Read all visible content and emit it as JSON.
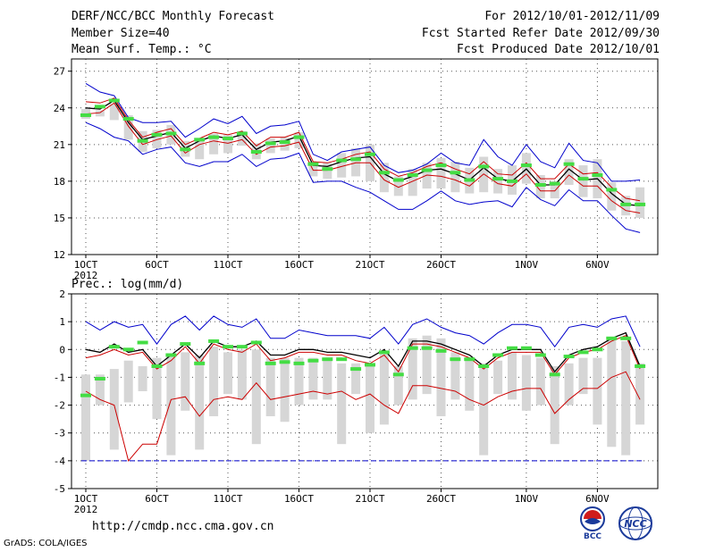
{
  "header": {
    "title": "DERF/NCC/BCC Monthly Forecast",
    "member_size": "Member Size=40",
    "variable_temp": "Mean Surf. Temp.: °C",
    "period": "For 2012/10/01-2012/11/09",
    "fcst_started": "Fcst Started Refer Date 2012/09/30",
    "fcst_produced": "Fcst Produced Date 2012/10/01"
  },
  "footer": {
    "url": "http://cmdp.ncc.cma.gov.cn",
    "grads": "GrADS: COLA/IGES",
    "logo_bcc": "BCC",
    "logo_ncc": "NCC"
  },
  "colors": {
    "ensemble_min_max": "#0000cc",
    "ensemble_spread": "#cc0000",
    "ensemble_mean": "#000000",
    "observed_or_climate": "#44dd44",
    "box": "#d6d6d6"
  },
  "chart_data": [
    {
      "type": "line",
      "title": "Mean Surf. Temp.: °C",
      "x_tick_labels": [
        "1OCT",
        "6OCT",
        "11OCT",
        "16OCT",
        "21OCT",
        "26OCT",
        "1NOV",
        "6NOV"
      ],
      "x_tick_days": [
        1,
        6,
        11,
        16,
        21,
        26,
        32,
        37
      ],
      "x_sub_label": "2012",
      "days": [
        1,
        2,
        3,
        4,
        5,
        6,
        7,
        8,
        9,
        10,
        11,
        12,
        13,
        14,
        15,
        16,
        17,
        18,
        19,
        20,
        21,
        22,
        23,
        24,
        25,
        26,
        27,
        28,
        29,
        30,
        31,
        32,
        33,
        34,
        35,
        36,
        37,
        38,
        39,
        40
      ],
      "ylim": [
        12,
        28
      ],
      "y_ticks": [
        12,
        15,
        18,
        21,
        24,
        27
      ],
      "series": [
        {
          "name": "max",
          "values": [
            26.0,
            25.3,
            25.0,
            23.2,
            22.8,
            22.8,
            22.9,
            21.6,
            22.3,
            23.1,
            22.7,
            23.3,
            21.9,
            22.5,
            22.6,
            22.9,
            20.2,
            19.7,
            20.4,
            20.6,
            20.8,
            19.3,
            18.7,
            18.9,
            19.4,
            20.3,
            19.5,
            19.3,
            21.4,
            20.0,
            19.3,
            21.0,
            19.6,
            19.1,
            21.1,
            19.7,
            19.5,
            18.0,
            18.0,
            18.1
          ]
        },
        {
          "name": "upper",
          "values": [
            24.5,
            24.4,
            24.8,
            23.0,
            21.6,
            22.0,
            22.3,
            21.0,
            21.5,
            22.0,
            21.8,
            22.1,
            20.9,
            21.6,
            21.6,
            22.0,
            19.6,
            19.5,
            19.8,
            20.2,
            20.4,
            19.0,
            18.4,
            18.7,
            19.2,
            19.5,
            19.0,
            18.6,
            19.6,
            18.6,
            18.5,
            19.5,
            18.2,
            18.2,
            19.4,
            18.6,
            18.7,
            17.5,
            16.6,
            16.4
          ]
        },
        {
          "name": "mean",
          "values": [
            24.0,
            23.9,
            24.6,
            22.8,
            21.4,
            21.7,
            22.0,
            20.7,
            21.3,
            21.7,
            21.5,
            21.8,
            20.6,
            21.2,
            21.3,
            21.7,
            19.3,
            19.2,
            19.6,
            19.9,
            20.0,
            18.6,
            18.0,
            18.4,
            18.9,
            19.0,
            18.6,
            18.1,
            19.1,
            18.2,
            18.0,
            19.0,
            17.7,
            17.7,
            19.0,
            18.1,
            18.2,
            17.0,
            16.1,
            16.0
          ]
        },
        {
          "name": "lower",
          "values": [
            23.5,
            23.6,
            24.4,
            22.5,
            21.0,
            21.4,
            21.7,
            20.3,
            21.0,
            21.3,
            21.1,
            21.4,
            20.2,
            20.8,
            20.9,
            21.2,
            18.9,
            18.9,
            19.2,
            19.5,
            19.5,
            18.1,
            17.5,
            18.0,
            18.5,
            18.4,
            18.1,
            17.6,
            18.6,
            17.8,
            17.6,
            18.6,
            17.2,
            17.2,
            18.5,
            17.6,
            17.6,
            16.4,
            15.6,
            15.4
          ]
        },
        {
          "name": "min",
          "values": [
            22.8,
            22.3,
            21.6,
            21.3,
            20.2,
            20.6,
            20.8,
            19.5,
            19.2,
            19.6,
            19.6,
            20.2,
            19.2,
            19.8,
            19.9,
            20.3,
            17.9,
            18.0,
            18.0,
            17.5,
            17.1,
            16.4,
            15.7,
            15.7,
            16.4,
            17.2,
            16.4,
            16.1,
            16.3,
            16.4,
            15.9,
            17.5,
            16.5,
            16.0,
            17.3,
            16.4,
            16.4,
            15.2,
            14.1,
            13.8
          ]
        },
        {
          "name": "box_high",
          "values": [
            23.9,
            23.8,
            24.3,
            23.4,
            22.1,
            22.2,
            22.6,
            21.3,
            21.5,
            21.9,
            21.8,
            22.1,
            21.1,
            21.5,
            21.6,
            22.0,
            19.6,
            19.5,
            20.3,
            20.7,
            21.0,
            19.5,
            18.4,
            19.0,
            19.5,
            19.9,
            19.6,
            19.1,
            20.0,
            19.0,
            19.3,
            20.3,
            18.5,
            18.0,
            19.8,
            19.3,
            19.8,
            17.9,
            16.8,
            17.5
          ]
        },
        {
          "name": "box_low",
          "values": [
            23.1,
            23.3,
            23.0,
            21.4,
            20.4,
            20.7,
            21.0,
            20.0,
            19.8,
            20.2,
            20.3,
            20.9,
            19.8,
            20.3,
            20.5,
            20.7,
            18.4,
            18.2,
            18.3,
            18.4,
            18.0,
            17.1,
            16.8,
            16.8,
            17.4,
            17.4,
            17.1,
            17.0,
            17.1,
            17.0,
            16.9,
            17.8,
            16.6,
            16.6,
            17.7,
            16.7,
            16.6,
            15.6,
            15.2,
            15.0
          ]
        },
        {
          "name": "observed",
          "values": [
            23.4,
            24.1,
            24.6,
            23.1,
            21.3,
            21.8,
            21.9,
            20.6,
            21.4,
            21.6,
            21.5,
            21.9,
            20.4,
            21.1,
            21.2,
            21.6,
            19.4,
            19.0,
            19.7,
            19.8,
            20.2,
            18.7,
            18.1,
            18.5,
            18.9,
            19.3,
            18.7,
            18.1,
            19.2,
            18.2,
            18.0,
            19.3,
            17.7,
            17.8,
            19.4,
            18.2,
            18.5,
            17.3,
            16.1,
            16.1
          ]
        }
      ]
    },
    {
      "type": "line",
      "title": "Prec.: log(mm/d)",
      "x_tick_labels": [
        "1OCT",
        "6OCT",
        "11OCT",
        "16OCT",
        "21OCT",
        "26OCT",
        "1NOV",
        "6NOV"
      ],
      "x_tick_days": [
        1,
        6,
        11,
        16,
        21,
        26,
        32,
        37
      ],
      "x_sub_label": "2012",
      "days": [
        1,
        2,
        3,
        4,
        5,
        6,
        7,
        8,
        9,
        10,
        11,
        12,
        13,
        14,
        15,
        16,
        17,
        18,
        19,
        20,
        21,
        22,
        23,
        24,
        25,
        26,
        27,
        28,
        29,
        30,
        31,
        32,
        33,
        34,
        35,
        36,
        37,
        38,
        39,
        40
      ],
      "ylim": [
        -5,
        2
      ],
      "y_ticks": [
        -5,
        -4,
        -3,
        -2,
        -1,
        0,
        1,
        2
      ],
      "series": [
        {
          "name": "max",
          "values": [
            1.0,
            0.7,
            1.0,
            0.8,
            0.9,
            0.2,
            0.9,
            1.2,
            0.7,
            1.2,
            0.9,
            0.8,
            1.1,
            0.4,
            0.4,
            0.7,
            0.6,
            0.5,
            0.5,
            0.5,
            0.4,
            0.8,
            0.2,
            0.9,
            1.1,
            0.8,
            0.6,
            0.5,
            0.2,
            0.6,
            0.9,
            0.9,
            0.8,
            0.1,
            0.8,
            0.9,
            0.8,
            1.1,
            1.2,
            0.1
          ]
        },
        {
          "name": "mean",
          "values": [
            0.0,
            -0.1,
            0.2,
            -0.1,
            0.0,
            -0.6,
            -0.2,
            0.2,
            -0.3,
            0.3,
            0.1,
            0.1,
            0.3,
            -0.2,
            -0.2,
            0.0,
            0.0,
            -0.1,
            -0.1,
            -0.2,
            -0.3,
            0.0,
            -0.6,
            0.3,
            0.3,
            0.2,
            0.0,
            -0.2,
            -0.6,
            -0.2,
            0.0,
            0.0,
            0.0,
            -0.8,
            -0.2,
            0.0,
            0.1,
            0.4,
            0.6,
            -0.6
          ]
        },
        {
          "name": "spread",
          "values": [
            -0.3,
            -0.2,
            0.0,
            -0.2,
            -0.1,
            -0.7,
            -0.4,
            0.1,
            -0.5,
            0.2,
            0.0,
            -0.1,
            0.2,
            -0.4,
            -0.3,
            -0.1,
            -0.1,
            -0.2,
            -0.2,
            -0.4,
            -0.5,
            -0.2,
            -0.8,
            0.2,
            0.2,
            0.1,
            -0.1,
            -0.3,
            -0.7,
            -0.3,
            -0.1,
            -0.1,
            -0.1,
            -0.9,
            -0.3,
            -0.1,
            0.0,
            0.3,
            0.5,
            -0.7
          ]
        },
        {
          "name": "min",
          "values": [
            -1.5,
            -1.8,
            -2.0,
            -4.0,
            -3.4,
            -3.4,
            -1.8,
            -1.7,
            -2.4,
            -1.8,
            -1.7,
            -1.8,
            -1.2,
            -1.8,
            -1.7,
            -1.6,
            -1.5,
            -1.6,
            -1.5,
            -1.8,
            -1.6,
            -2.0,
            -2.3,
            -1.3,
            -1.3,
            -1.4,
            -1.5,
            -1.8,
            -2.0,
            -1.7,
            -1.5,
            -1.4,
            -1.4,
            -2.3,
            -1.8,
            -1.4,
            -1.4,
            -1.0,
            -0.8,
            -1.8
          ]
        },
        {
          "name": "box_high",
          "values": [
            -0.9,
            -0.9,
            -0.7,
            -0.4,
            -0.6,
            -0.3,
            -0.2,
            -0.1,
            -0.2,
            0.1,
            -0.1,
            0.0,
            0.0,
            -0.3,
            -0.3,
            -0.3,
            -0.3,
            -0.4,
            -0.5,
            -0.5,
            -0.6,
            -0.1,
            -0.6,
            0.4,
            0.5,
            0.4,
            -0.1,
            -0.4,
            -0.5,
            -0.4,
            -0.1,
            -0.2,
            -0.3,
            -0.6,
            -0.5,
            -0.3,
            -0.3,
            0.4,
            0.3,
            -0.5
          ]
        },
        {
          "name": "box_low",
          "values": [
            -4.0,
            -2.0,
            -3.6,
            -1.9,
            -1.5,
            -2.5,
            -3.8,
            -2.2,
            -3.6,
            -2.4,
            -1.6,
            -1.8,
            -3.4,
            -2.4,
            -2.6,
            -2.0,
            -1.8,
            -1.8,
            -3.4,
            -1.6,
            -3.0,
            -2.7,
            -2.0,
            -1.8,
            -1.6,
            -2.4,
            -1.8,
            -2.2,
            -3.8,
            -1.6,
            -1.8,
            -2.2,
            -2.0,
            -3.4,
            -2.0,
            -1.6,
            -2.7,
            -3.5,
            -3.8,
            -2.7
          ]
        },
        {
          "name": "observed",
          "values": [
            -1.65,
            -1.05,
            0.1,
            0.0,
            0.25,
            -0.6,
            -0.2,
            0.2,
            -0.5,
            0.3,
            0.1,
            0.1,
            0.25,
            -0.5,
            -0.45,
            -0.5,
            -0.4,
            -0.35,
            -0.35,
            -0.7,
            -0.55,
            -0.1,
            -0.9,
            0.05,
            0.05,
            -0.05,
            -0.35,
            -0.35,
            -0.6,
            -0.2,
            0.05,
            0.05,
            -0.2,
            -0.9,
            -0.25,
            -0.1,
            0.0,
            0.4,
            0.4,
            -0.6
          ]
        }
      ],
      "baseline": -4
    }
  ]
}
